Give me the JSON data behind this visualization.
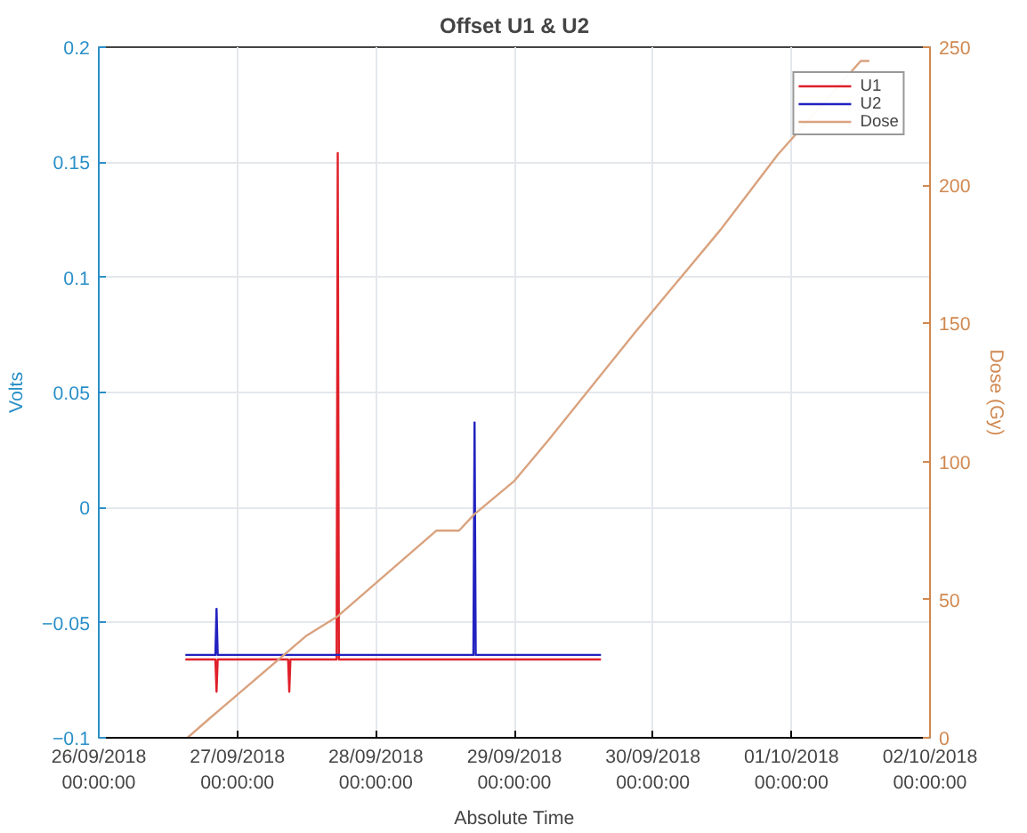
{
  "chart_data": {
    "type": "line",
    "title": "Offset U1 & U2",
    "xlabel": "Absolute Time",
    "ylabel": "Volts",
    "y2label": "Dose (Gy)",
    "xlim": [
      "2018-09-26T00:00",
      "2018-10-02T00:00"
    ],
    "xticks": [
      {
        "value": "2018-09-26T00:00",
        "label": "26/09/2018\n00:00:00"
      },
      {
        "value": "2018-09-27T00:00",
        "label": "27/09/2018\n00:00:00"
      },
      {
        "value": "2018-09-28T00:00",
        "label": "28/09/2018\n00:00:00"
      },
      {
        "value": "2018-09-29T00:00",
        "label": "29/09/2018\n00:00:00"
      },
      {
        "value": "2018-09-30T00:00",
        "label": "30/09/2018\n00:00:00"
      },
      {
        "value": "2018-10-01T00:00",
        "label": "01/10/2018\n00:00:00"
      },
      {
        "value": "2018-10-02T00:00",
        "label": "02/10/2018\n00:00:00"
      }
    ],
    "ylim": [
      -0.1,
      0.2
    ],
    "yticks": [
      -0.1,
      -0.05,
      0,
      0.05,
      0.1,
      0.15,
      0.2
    ],
    "y2lim": [
      0,
      250
    ],
    "y2ticks": [
      0,
      50,
      100,
      150,
      200,
      250
    ],
    "grid": true,
    "legend": "top right",
    "series": [
      {
        "name": "U1",
        "color": "#e0202a",
        "x": [
          "2018-09-26T15:00",
          "2018-09-26T20:12",
          "2018-09-26T20:24",
          "2018-09-26T20:36",
          "2018-09-27T08:48",
          "2018-09-27T09:00",
          "2018-09-27T09:12",
          "2018-09-27T17:12",
          "2018-09-27T17:24",
          "2018-09-27T17:36",
          "2018-09-29T15:00"
        ],
        "values": [
          -0.066,
          -0.066,
          -0.08,
          -0.066,
          -0.066,
          -0.08,
          -0.066,
          -0.066,
          0.154,
          -0.066,
          -0.066
        ]
      },
      {
        "name": "U2",
        "color": "#2222c0",
        "x": [
          "2018-09-26T15:00",
          "2018-09-26T20:12",
          "2018-09-26T20:24",
          "2018-09-26T20:36",
          "2018-09-28T16:54",
          "2018-09-28T17:06",
          "2018-09-28T17:18",
          "2018-09-29T15:00"
        ],
        "values": [
          -0.064,
          -0.064,
          -0.044,
          -0.064,
          -0.064,
          0.037,
          -0.064,
          -0.064
        ]
      },
      {
        "name": "Dose",
        "color": "#d9a27e",
        "axis": "y2",
        "x": [
          "2018-09-26T15:22",
          "2018-09-26T19:12",
          "2018-09-27T12:00",
          "2018-09-27T17:24",
          "2018-09-28T10:30",
          "2018-09-28T14:24",
          "2018-09-28T17:06",
          "2018-09-29T00:00",
          "2018-09-29T06:00",
          "2018-09-29T21:00",
          "2018-09-30T11:45",
          "2018-09-30T21:36",
          "2018-10-01T12:00",
          "2018-10-01T13:30"
        ],
        "values": [
          0,
          7,
          37,
          44,
          75,
          75,
          81,
          93,
          108,
          147,
          184,
          211,
          245,
          245
        ]
      }
    ]
  }
}
